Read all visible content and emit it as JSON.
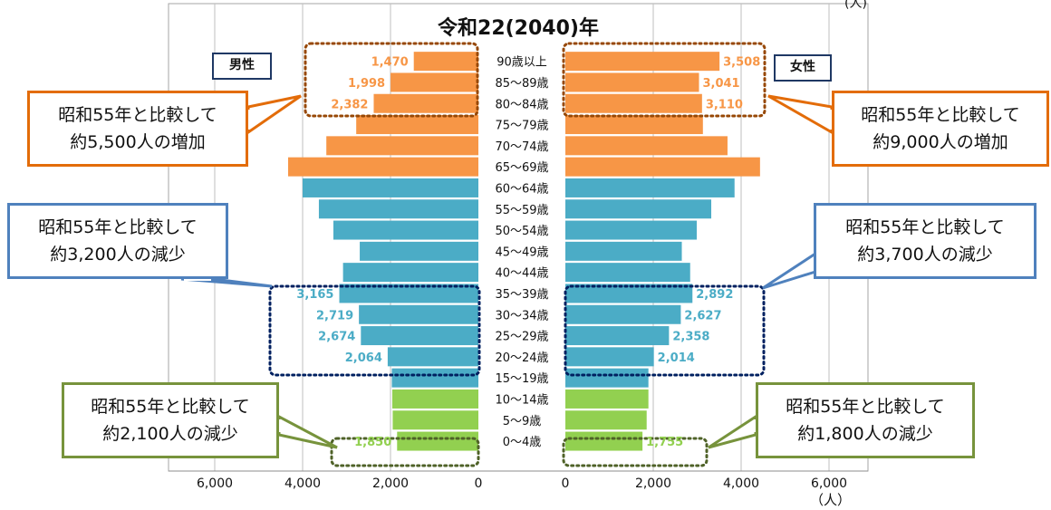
{
  "chart_data": {
    "type": "bar",
    "title": "令和22(2040)年",
    "top_unit": "(人)",
    "xlabel": "（人）",
    "xlim_male": [
      6000,
      0
    ],
    "xlim_female": [
      0,
      6000
    ],
    "male_ticks": [
      "6,000",
      "4,000",
      "2,000",
      "0"
    ],
    "female_ticks": [
      "0",
      "2,000",
      "4,000",
      "6,000"
    ],
    "male_label": "男性",
    "female_label": "女性",
    "categories": [
      "90歳以上",
      "85～89歳",
      "80～84歳",
      "75～79歳",
      "70～74歳",
      "65～69歳",
      "60～64歳",
      "55～59歳",
      "50～54歳",
      "45～49歳",
      "40～44歳",
      "35～39歳",
      "30～34歳",
      "25～29歳",
      "20～24歳",
      "15～19歳",
      "10～14歳",
      "5～9歳",
      "0～4歳"
    ],
    "series": [
      {
        "name": "男性",
        "values": [
          1470,
          1998,
          2382,
          2780,
          3460,
          4330,
          4000,
          3630,
          3300,
          2700,
          3080,
          3165,
          2719,
          2674,
          2064,
          1970,
          1960,
          1950,
          1850
        ]
      },
      {
        "name": "女性",
        "values": [
          3508,
          3041,
          3110,
          3130,
          3690,
          4430,
          3850,
          3320,
          2990,
          2650,
          2840,
          2892,
          2627,
          2358,
          2014,
          1890,
          1890,
          1850,
          1755
        ]
      }
    ],
    "group_colors": {
      "elderly": "#f79646",
      "working": "#4bacc6",
      "young": "#92d050"
    },
    "value_label_colors": {
      "elderly": "#f79646",
      "working": "#4bacc6",
      "young": "#92d050"
    },
    "bar_labels": {
      "male": {
        "90歳以上": "1,470",
        "85～89歳": "1,998",
        "80～84歳": "2,382",
        "35～39歳": "3,165",
        "30～34歳": "2,719",
        "25～29歳": "2,674",
        "20～24歳": "2,064",
        "0～4歳": "1,850"
      },
      "female": {
        "90歳以上": "3,508",
        "85～89歳": "3,041",
        "80～84歳": "3,110",
        "35～39歳": "2,892",
        "30～34歳": "2,627",
        "25～29歳": "2,358",
        "20～24歳": "2,014",
        "0～4歳": "1,755"
      }
    }
  },
  "callouts": {
    "male_elderly": {
      "line1": "昭和55年と比較して",
      "line2": "約5,500人の増加",
      "color": "#e36c09"
    },
    "female_elderly": {
      "line1": "昭和55年と比較して",
      "line2": "約9,000人の増加",
      "color": "#e36c09"
    },
    "male_working": {
      "line1": "昭和55年と比較して",
      "line2": "約3,200人の減少",
      "color": "#4f81bd"
    },
    "female_working": {
      "line1": "昭和55年と比較して",
      "line2": "約3,700人の減少",
      "color": "#4f81bd"
    },
    "male_young": {
      "line1": "昭和55年と比較して",
      "line2": "約2,100人の減少",
      "color": "#77933c"
    },
    "female_young": {
      "line1": "昭和55年と比較して",
      "line2": "約1,800人の減少",
      "color": "#77933c"
    }
  }
}
